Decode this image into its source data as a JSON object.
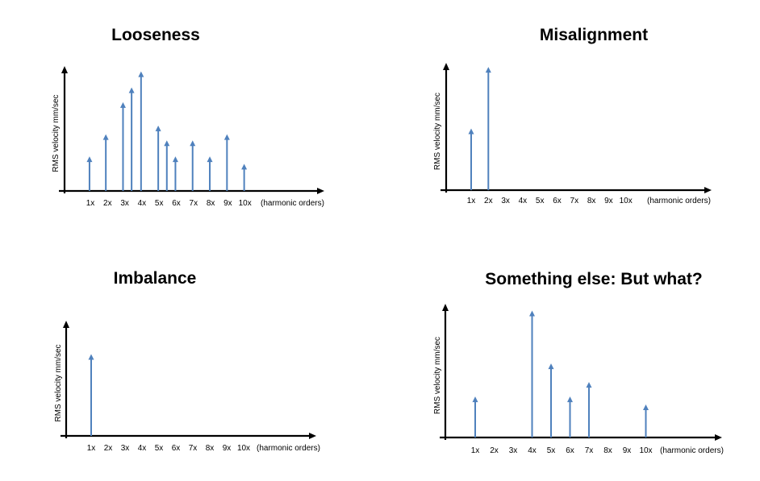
{
  "colors": {
    "stem": "#4f81bd",
    "axis": "#000000",
    "text": "#000000"
  },
  "chart_data": [
    {
      "type": "bar",
      "style": "stem-with-arrowheads",
      "title": "Looseness",
      "ylabel": "RMS velocity mm/sec",
      "xunit": "(harmonic orders)",
      "categories": [
        "1x",
        "2x",
        "3x",
        "4x",
        "5x",
        "6x",
        "7x",
        "8x",
        "9x",
        "10x"
      ],
      "stems": [
        {
          "x": 0.95,
          "y": 0.28
        },
        {
          "x": 1.9,
          "y": 0.46
        },
        {
          "x": 2.9,
          "y": 0.72
        },
        {
          "x": 3.4,
          "y": 0.84
        },
        {
          "x": 3.95,
          "y": 0.97
        },
        {
          "x": 4.95,
          "y": 0.53
        },
        {
          "x": 5.45,
          "y": 0.41
        },
        {
          "x": 5.95,
          "y": 0.28
        },
        {
          "x": 6.95,
          "y": 0.41
        },
        {
          "x": 7.95,
          "y": 0.28
        },
        {
          "x": 8.95,
          "y": 0.46
        },
        {
          "x": 9.95,
          "y": 0.22
        }
      ],
      "ylim": [
        0,
        1
      ],
      "grid": false
    },
    {
      "type": "bar",
      "style": "stem-with-arrowheads",
      "title": "Misalignment",
      "ylabel": "RMS velocity mm/sec",
      "xunit": "(harmonic orders)",
      "categories": [
        "1x",
        "2x",
        "3x",
        "4x",
        "5x",
        "6x",
        "7x",
        "8x",
        "9x",
        "10x"
      ],
      "stems": [
        {
          "x": 1,
          "y": 0.49
        },
        {
          "x": 2,
          "y": 0.98
        }
      ],
      "ylim": [
        0,
        1
      ],
      "grid": false
    },
    {
      "type": "bar",
      "style": "stem-with-arrowheads",
      "title": "Imbalance",
      "ylabel": "RMS velocity mm/sec",
      "xunit": "(harmonic orders)",
      "categories": [
        "1x",
        "2x",
        "3x",
        "4x",
        "5x",
        "6x",
        "7x",
        "8x",
        "9x",
        "10x"
      ],
      "stems": [
        {
          "x": 1,
          "y": 0.72
        }
      ],
      "ylim": [
        0,
        1
      ],
      "grid": false
    },
    {
      "type": "bar",
      "style": "stem-with-arrowheads",
      "title": "Something else: But what?",
      "ylabel": "RMS velocity mm/sec",
      "xunit": "(harmonic orders)",
      "categories": [
        "1x",
        "2x",
        "3x",
        "4x",
        "5x",
        "6x",
        "7x",
        "8x",
        "9x",
        "10x"
      ],
      "stems": [
        {
          "x": 1,
          "y": 0.31
        },
        {
          "x": 4,
          "y": 0.96
        },
        {
          "x": 5,
          "y": 0.56
        },
        {
          "x": 6,
          "y": 0.31
        },
        {
          "x": 7,
          "y": 0.42
        },
        {
          "x": 10,
          "y": 0.25
        }
      ],
      "ylim": [
        0,
        1
      ],
      "grid": false
    }
  ]
}
